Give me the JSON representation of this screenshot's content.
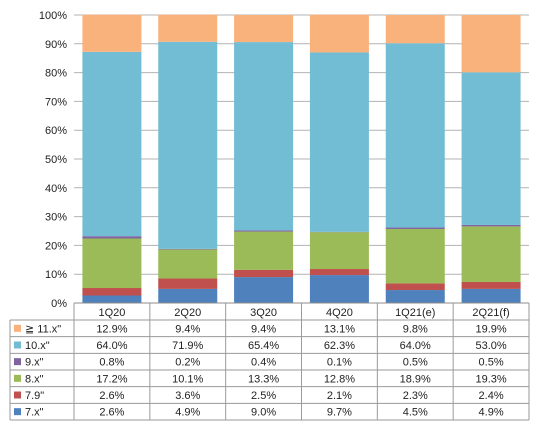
{
  "chart_data": {
    "type": "bar",
    "stacked": "percent",
    "categories": [
      "1Q20",
      "2Q20",
      "3Q20",
      "4Q20",
      "1Q21(e)",
      "2Q21(f)"
    ],
    "ylim": [
      0,
      100
    ],
    "yticks": [
      "0%",
      "10%",
      "20%",
      "30%",
      "40%",
      "50%",
      "60%",
      "70%",
      "80%",
      "90%",
      "100%"
    ],
    "grid": true,
    "legend_placement": "data-table-left",
    "series": [
      {
        "name": "7.x\"",
        "color": "#4F81BD",
        "values": [
          2.6,
          4.9,
          9.0,
          9.7,
          4.5,
          4.9
        ],
        "labels": [
          "2.6%",
          "4.9%",
          "9.0%",
          "9.7%",
          "4.5%",
          "4.9%"
        ]
      },
      {
        "name": "7.9\"",
        "color": "#C0504D",
        "values": [
          2.6,
          3.6,
          2.5,
          2.1,
          2.3,
          2.4
        ],
        "labels": [
          "2.6%",
          "3.6%",
          "2.5%",
          "2.1%",
          "2.3%",
          "2.4%"
        ]
      },
      {
        "name": "8.x\"",
        "color": "#9BBB59",
        "values": [
          17.2,
          10.1,
          13.3,
          12.8,
          18.9,
          19.3
        ],
        "labels": [
          "17.2%",
          "10.1%",
          "13.3%",
          "12.8%",
          "18.9%",
          "19.3%"
        ]
      },
      {
        "name": "9.x\"",
        "color": "#8064A2",
        "values": [
          0.8,
          0.2,
          0.4,
          0.1,
          0.5,
          0.5
        ],
        "labels": [
          "0.8%",
          "0.2%",
          "0.4%",
          "0.1%",
          "0.5%",
          "0.5%"
        ]
      },
      {
        "name": "10.x\"",
        "color": "#73BDD4",
        "values": [
          64.0,
          71.9,
          65.4,
          62.3,
          64.0,
          53.0
        ],
        "labels": [
          "64.0%",
          "71.9%",
          "65.4%",
          "62.3%",
          "64.0%",
          "53.0%"
        ]
      },
      {
        "name": "≧ 11.x\"",
        "color": "#F9B27C",
        "values": [
          12.9,
          9.4,
          9.4,
          13.1,
          9.8,
          19.9
        ],
        "labels": [
          "12.9%",
          "9.4%",
          "9.4%",
          "13.1%",
          "9.8%",
          "19.9%"
        ]
      }
    ]
  }
}
